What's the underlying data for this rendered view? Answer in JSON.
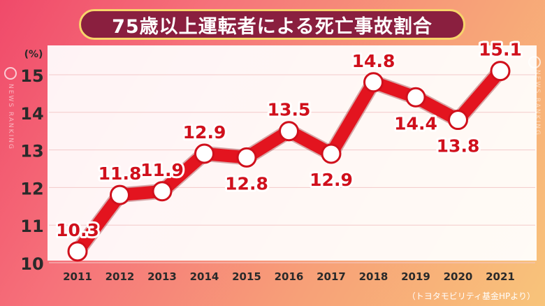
{
  "title": "75歳以上運転者による死亡事故割合",
  "side_text": "NEWS RANKING",
  "source": "（トヨタモビリティ基金HPより）",
  "chart_data": {
    "type": "line",
    "title": "75歳以上運転者による死亡事故割合",
    "xlabel": "",
    "ylabel": "(%)",
    "ylim": [
      10,
      15.5
    ],
    "yticks": [
      10,
      11,
      12,
      13,
      14,
      15
    ],
    "categories": [
      "2011",
      "2012",
      "2013",
      "2014",
      "2015",
      "2016",
      "2017",
      "2018",
      "2019",
      "2020",
      "2021"
    ],
    "series": [
      {
        "values": [
          10.3,
          11.8,
          11.9,
          12.9,
          12.8,
          13.5,
          12.9,
          14.8,
          14.4,
          13.8,
          15.1
        ],
        "color": "#e3141f"
      }
    ],
    "labels": [
      "10.3",
      "11.8",
      "11.9",
      "12.9",
      "12.8",
      "13.5",
      "12.9",
      "14.8",
      "14.4",
      "13.8",
      "15.1"
    ],
    "grid": true,
    "legend": "none"
  }
}
